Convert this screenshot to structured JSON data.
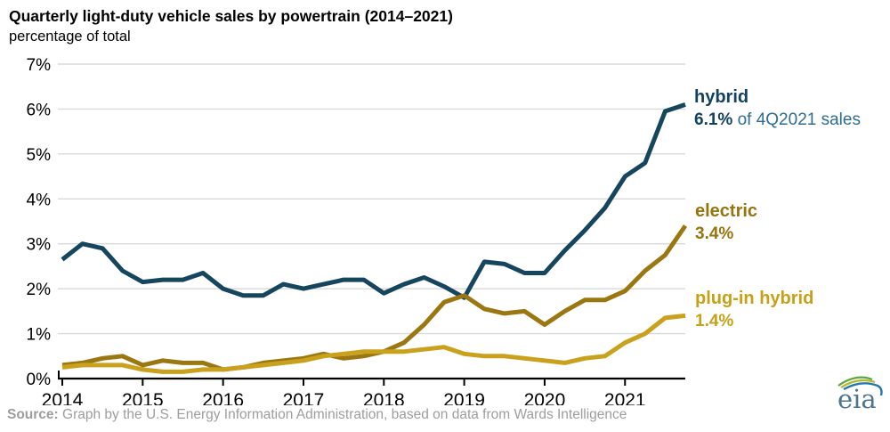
{
  "header": {
    "title": "Quarterly light-duty vehicle sales by powertrain (2014–2021)",
    "subtitle": "percentage of total"
  },
  "chart_data": {
    "type": "line",
    "x_quarters": [
      "2014Q1",
      "2014Q2",
      "2014Q3",
      "2014Q4",
      "2015Q1",
      "2015Q2",
      "2015Q3",
      "2015Q4",
      "2016Q1",
      "2016Q2",
      "2016Q3",
      "2016Q4",
      "2017Q1",
      "2017Q2",
      "2017Q3",
      "2017Q4",
      "2018Q1",
      "2018Q2",
      "2018Q3",
      "2018Q4",
      "2019Q1",
      "2019Q2",
      "2019Q3",
      "2019Q4",
      "2020Q1",
      "2020Q2",
      "2020Q3",
      "2020Q4",
      "2021Q1",
      "2021Q2",
      "2021Q3",
      "2021Q4"
    ],
    "series": [
      {
        "name": "hybrid",
        "color": "#16455e",
        "values": [
          2.65,
          3.0,
          2.9,
          2.4,
          2.15,
          2.2,
          2.2,
          2.35,
          2.0,
          1.85,
          1.85,
          2.1,
          2.0,
          2.1,
          2.2,
          2.2,
          1.9,
          2.1,
          2.25,
          2.05,
          1.8,
          2.6,
          2.55,
          2.35,
          2.35,
          2.85,
          3.3,
          3.8,
          4.5,
          4.8,
          5.95,
          6.1
        ]
      },
      {
        "name": "electric",
        "color": "#9a7711",
        "values": [
          0.3,
          0.35,
          0.45,
          0.5,
          0.3,
          0.4,
          0.35,
          0.35,
          0.2,
          0.25,
          0.35,
          0.4,
          0.45,
          0.55,
          0.45,
          0.5,
          0.6,
          0.8,
          1.2,
          1.7,
          1.85,
          1.55,
          1.45,
          1.5,
          1.2,
          1.5,
          1.75,
          1.75,
          1.95,
          2.4,
          2.75,
          3.4
        ]
      },
      {
        "name": "plug-in hybrid",
        "color": "#c9a11d",
        "values": [
          0.25,
          0.3,
          0.3,
          0.3,
          0.2,
          0.15,
          0.15,
          0.2,
          0.2,
          0.25,
          0.3,
          0.35,
          0.4,
          0.5,
          0.55,
          0.6,
          0.6,
          0.6,
          0.65,
          0.7,
          0.55,
          0.5,
          0.5,
          0.45,
          0.4,
          0.35,
          0.45,
          0.5,
          0.8,
          1.0,
          1.35,
          1.4
        ]
      }
    ],
    "xticks": [
      "2014",
      "2015",
      "2016",
      "2017",
      "2018",
      "2019",
      "2020",
      "2021"
    ],
    "ylim": [
      0,
      7
    ],
    "ytick_step": 1,
    "ytick_suffix": "%",
    "grid": "horizontal",
    "gridline_color": "#d9d9d9",
    "axis_color": "#000000",
    "legend_position": "right-annotations"
  },
  "annotations": {
    "hybrid": {
      "name": "hybrid",
      "value": "6.1%",
      "suffix": " of 4Q2021 sales"
    },
    "electric": {
      "name": "electric",
      "value": "3.4%",
      "suffix": ""
    },
    "plug_in": {
      "name": "plug-in hybrid",
      "value": "1.4%",
      "suffix": ""
    }
  },
  "footer": {
    "source_label": "Source:",
    "source_text": " Graph by the U.S. Energy Information Administration, based on data from Wards Intelligence"
  },
  "logo": {
    "text": "eia"
  }
}
